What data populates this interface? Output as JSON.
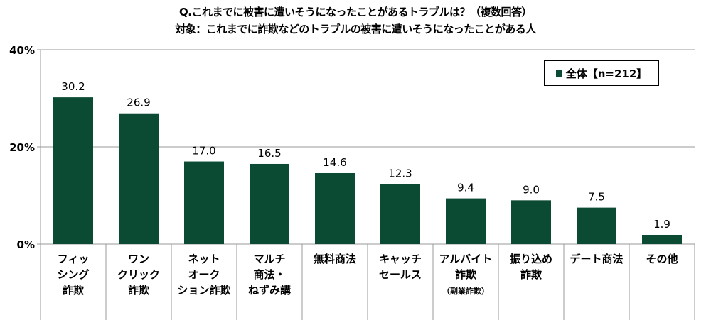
{
  "title_line1": "Q.これまでに被害に遭いそうになったことがあるトラブルは？（複数回答）",
  "title_line2": "対象：これまでに詐欺などのトラブルの被害に遭いそうになったことがある人",
  "chart_data": {
    "type": "bar",
    "categories": [
      [
        "フィッ",
        "シング",
        "詐欺"
      ],
      [
        "ワン",
        "クリック",
        "詐欺"
      ],
      [
        "ネット",
        "オーク",
        "ション詐欺"
      ],
      [
        "マルチ",
        "商法・",
        "ねずみ講"
      ],
      [
        "無料商法"
      ],
      [
        "キャッチ",
        "セールス"
      ],
      [
        "アルバイト",
        "詐欺",
        "（副業詐欺）"
      ],
      [
        "振り込め",
        "詐欺"
      ],
      [
        "デート商法"
      ],
      [
        "その他"
      ]
    ],
    "series": [
      {
        "name": "全体【n=212】",
        "values": [
          30.2,
          26.9,
          17.0,
          16.5,
          14.6,
          12.3,
          9.4,
          9.0,
          7.5,
          1.9
        ],
        "color": "#0b4a33"
      }
    ],
    "data_labels": [
      "30.2",
      "26.9",
      "17.0",
      "16.5",
      "14.6",
      "12.3",
      "9.4",
      "9.0",
      "7.5",
      "1.9"
    ],
    "yticks": [
      "0%",
      "20%",
      "40%"
    ],
    "ylim": [
      0,
      40
    ],
    "grid": true,
    "legend_position": "top-right"
  }
}
